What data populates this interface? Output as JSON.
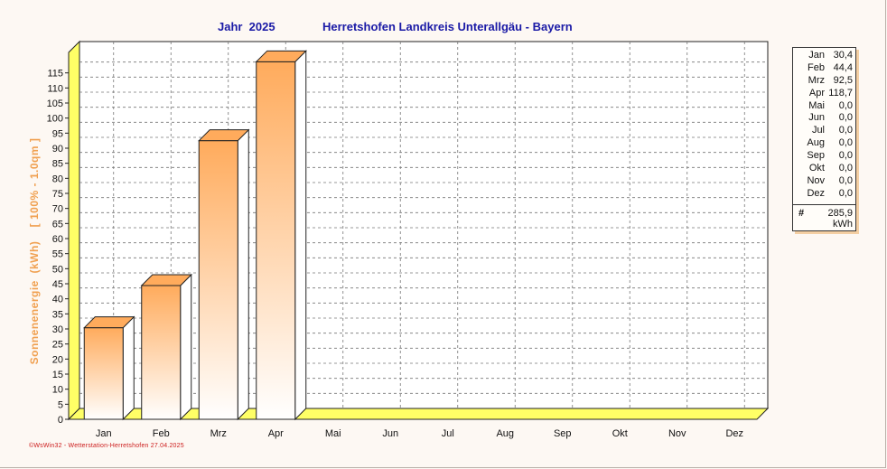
{
  "title": {
    "year": "Jahr  2025",
    "location": "Herretshofen Landkreis Unterallgäu - Bayern"
  },
  "footer": "©WsWin32 - Wetterstation-Herretshofen 27.04.2025",
  "colors": {
    "title": "#1a1aa6",
    "axis_label": "#f0a050",
    "bar_top": "#ffab5c",
    "bar_bottom": "#ffffff",
    "floor": "#ffff66",
    "footer": "#cc1b1b"
  },
  "legend": {
    "rows": [
      {
        "month": "Jan",
        "value": "30,4"
      },
      {
        "month": "Feb",
        "value": "44,4"
      },
      {
        "month": "Mrz",
        "value": "92,5"
      },
      {
        "month": "Apr",
        "value": "118,7"
      },
      {
        "month": "Mai",
        "value": "0,0"
      },
      {
        "month": "Jun",
        "value": "0,0"
      },
      {
        "month": "Jul",
        "value": "0,0"
      },
      {
        "month": "Aug",
        "value": "0,0"
      },
      {
        "month": "Sep",
        "value": "0,0"
      },
      {
        "month": "Okt",
        "value": "0,0"
      },
      {
        "month": "Nov",
        "value": "0,0"
      },
      {
        "month": "Dez",
        "value": "0,0"
      }
    ],
    "total_symbol": "#",
    "total": "285,9",
    "unit": "kWh"
  },
  "chart_data": {
    "type": "bar",
    "categories": [
      "Jan",
      "Feb",
      "Mrz",
      "Apr",
      "Mai",
      "Jun",
      "Jul",
      "Aug",
      "Sep",
      "Okt",
      "Nov",
      "Dez"
    ],
    "values": [
      30.4,
      44.4,
      92.5,
      118.7,
      0,
      0,
      0,
      0,
      0,
      0,
      0,
      0
    ],
    "ylabel": "Sonnenenergie  (kWh)    [ 100% - 1.0qm ]",
    "ylim": [
      0,
      120
    ],
    "yticks": [
      0,
      5,
      10,
      15,
      20,
      25,
      30,
      35,
      40,
      45,
      50,
      55,
      60,
      65,
      70,
      75,
      80,
      85,
      90,
      95,
      100,
      105,
      110,
      115
    ],
    "grid": true,
    "style": "3d-bar",
    "legend_placement": "right"
  }
}
